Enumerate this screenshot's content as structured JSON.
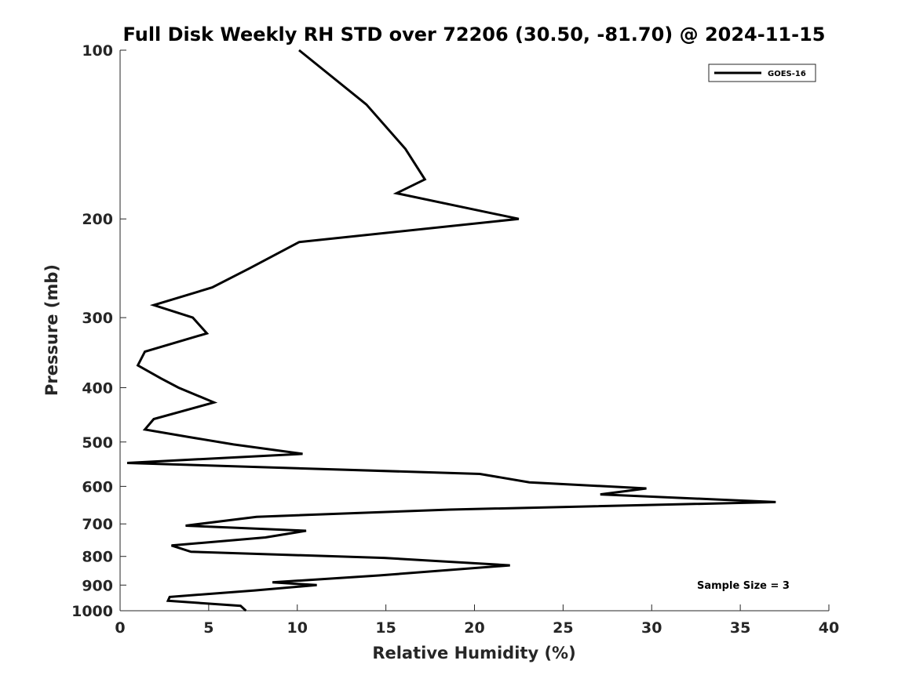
{
  "chart_data": {
    "type": "line",
    "title": "Full Disk Weekly RH STD over 72206 (30.50, -81.70) @ 2024-11-15",
    "xlabel": "Relative Humidity (%)",
    "ylabel": "Pressure (mb)",
    "xlim": [
      0,
      40
    ],
    "ylim": [
      100,
      1000
    ],
    "y_scale": "log",
    "y_reversed": true,
    "x_ticks": [
      0,
      5,
      10,
      15,
      20,
      25,
      30,
      35,
      40
    ],
    "y_ticks": [
      100,
      200,
      300,
      400,
      500,
      600,
      700,
      800,
      900,
      1000
    ],
    "grid": false,
    "legend_position": "top-right",
    "annotation": "Sample Size = 3",
    "series": [
      {
        "name": "GOES-16",
        "color": "#000000",
        "points": [
          [
            10.1,
            100
          ],
          [
            13.9,
            125
          ],
          [
            16.1,
            150
          ],
          [
            17.2,
            170
          ],
          [
            15.6,
            180
          ],
          [
            22.5,
            200
          ],
          [
            10.1,
            220
          ],
          [
            7.3,
            245
          ],
          [
            5.2,
            265
          ],
          [
            1.9,
            285
          ],
          [
            4.1,
            300
          ],
          [
            4.9,
            320
          ],
          [
            1.4,
            345
          ],
          [
            1.0,
            365
          ],
          [
            2.3,
            385
          ],
          [
            3.3,
            400
          ],
          [
            5.3,
            425
          ],
          [
            1.9,
            455
          ],
          [
            1.4,
            475
          ],
          [
            3.9,
            490
          ],
          [
            6.4,
            505
          ],
          [
            10.3,
            525
          ],
          [
            0.4,
            545
          ],
          [
            20.3,
            570
          ],
          [
            23.1,
            590
          ],
          [
            29.7,
            605
          ],
          [
            27.1,
            620
          ],
          [
            37.0,
            640
          ],
          [
            18.6,
            660
          ],
          [
            7.7,
            680
          ],
          [
            3.7,
            705
          ],
          [
            10.5,
            720
          ],
          [
            8.2,
            740
          ],
          [
            2.9,
            765
          ],
          [
            4.0,
            785
          ],
          [
            14.9,
            805
          ],
          [
            22.0,
            830
          ],
          [
            14.6,
            865
          ],
          [
            8.6,
            890
          ],
          [
            11.1,
            900
          ],
          [
            7.6,
            920
          ],
          [
            2.8,
            945
          ],
          [
            2.7,
            960
          ],
          [
            6.8,
            980
          ],
          [
            7.1,
            1000
          ]
        ]
      }
    ]
  }
}
